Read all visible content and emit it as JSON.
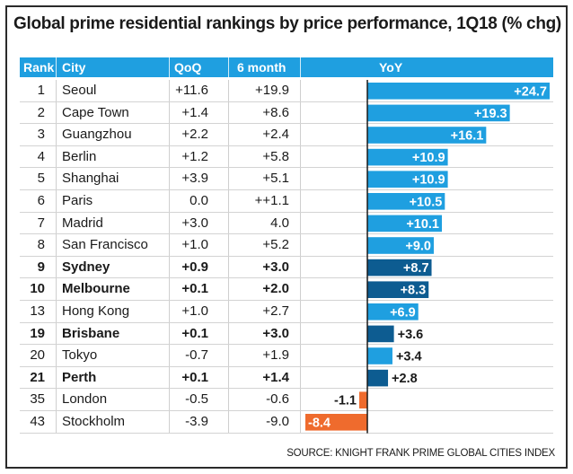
{
  "title": "Global prime residential rankings by price performance, 1Q18 (% chg)",
  "source": "SOURCE: KNIGHT FRANK PRIME GLOBAL CITIES INDEX",
  "colors": {
    "header": "#1f9fe0",
    "bar_positive": "#1f9fe0",
    "bar_highlight": "#0d5c91",
    "bar_negative": "#ef6b2d"
  },
  "columns": [
    "Rank",
    "City",
    "QoQ",
    "6 month",
    "YoY"
  ],
  "rows": [
    {
      "rank": "1",
      "city": "Seoul",
      "qoq": "+11.6",
      "six": "+19.9",
      "yoy": "+24.7",
      "bold": false
    },
    {
      "rank": "2",
      "city": "Cape Town",
      "qoq": "+1.4",
      "six": "+8.6",
      "yoy": "+19.3",
      "bold": false
    },
    {
      "rank": "3",
      "city": "Guangzhou",
      "qoq": "+2.2",
      "six": "+2.4",
      "yoy": "+16.1",
      "bold": false
    },
    {
      "rank": "4",
      "city": "Berlin",
      "qoq": "+1.2",
      "six": "+5.8",
      "yoy": "+10.9",
      "bold": false
    },
    {
      "rank": "5",
      "city": "Shanghai",
      "qoq": "+3.9",
      "six": "+5.1",
      "yoy": "+10.9",
      "bold": false
    },
    {
      "rank": "6",
      "city": "Paris",
      "qoq": "0.0",
      "six": "++1.1",
      "yoy": "+10.5",
      "bold": false
    },
    {
      "rank": "7",
      "city": "Madrid",
      "qoq": "+3.0",
      "six": "4.0",
      "yoy": "+10.1",
      "bold": false
    },
    {
      "rank": "8",
      "city": "San Francisco",
      "qoq": "+1.0",
      "six": "+5.2",
      "yoy": "+9.0",
      "bold": false
    },
    {
      "rank": "9",
      "city": "Sydney",
      "qoq": "+0.9",
      "six": "+3.0",
      "yoy": "+8.7",
      "bold": true
    },
    {
      "rank": "10",
      "city": "Melbourne",
      "qoq": "+0.1",
      "six": "+2.0",
      "yoy": "+8.3",
      "bold": true
    },
    {
      "rank": "13",
      "city": "Hong Kong",
      "qoq": "+1.0",
      "six": "+2.7",
      "yoy": "+6.9",
      "bold": false
    },
    {
      "rank": "19",
      "city": "Brisbane",
      "qoq": "+0.1",
      "six": "+3.0",
      "yoy": "+3.6",
      "bold": true
    },
    {
      "rank": "20",
      "city": "Tokyo",
      "qoq": "-0.7",
      "six": "+1.9",
      "yoy": "+3.4",
      "bold": false
    },
    {
      "rank": "21",
      "city": "Perth",
      "qoq": "+0.1",
      "six": "+1.4",
      "yoy": "+2.8",
      "bold": true
    },
    {
      "rank": "35",
      "city": "London",
      "qoq": "-0.5",
      "six": "-0.6",
      "yoy": "-1.1",
      "bold": false
    },
    {
      "rank": "43",
      "city": "Stockholm",
      "qoq": "-3.9",
      "six": "-9.0",
      "yoy": "-8.4",
      "bold": false
    }
  ],
  "chart_data": {
    "type": "bar",
    "orientation": "horizontal",
    "title": "Global prime residential rankings by price performance, 1Q18 (% chg)",
    "xlabel": "YoY",
    "ylabel": "",
    "categories": [
      "Seoul",
      "Cape Town",
      "Guangzhou",
      "Berlin",
      "Shanghai",
      "Paris",
      "Madrid",
      "San Francisco",
      "Sydney",
      "Melbourne",
      "Hong Kong",
      "Brisbane",
      "Tokyo",
      "Perth",
      "London",
      "Stockholm"
    ],
    "values": [
      24.7,
      19.3,
      16.1,
      10.9,
      10.9,
      10.5,
      10.1,
      9.0,
      8.7,
      8.3,
      6.9,
      3.6,
      3.4,
      2.8,
      -1.1,
      -8.4
    ],
    "labels": [
      "+24.7",
      "+19.3",
      "+16.1",
      "+10.9",
      "+10.9",
      "+10.5",
      "+10.1",
      "+9.0",
      "+8.7",
      "+8.3",
      "+6.9",
      "+3.6",
      "+3.4",
      "+2.8",
      "-1.1",
      "-8.4"
    ],
    "highlight": [
      false,
      false,
      false,
      false,
      false,
      false,
      false,
      false,
      true,
      true,
      false,
      true,
      false,
      true,
      false,
      false
    ],
    "xlim": [
      -8.4,
      24.7
    ]
  }
}
